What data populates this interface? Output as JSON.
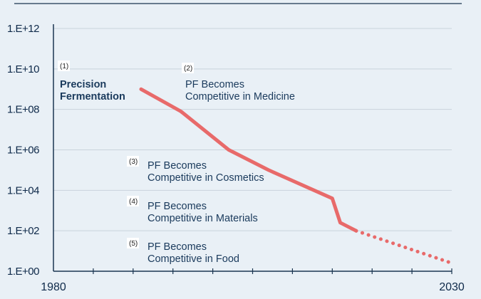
{
  "chart_data": {
    "type": "line",
    "x_axis": {
      "min": 1980,
      "max": 2030,
      "tick_labels": [
        "1980",
        "2030"
      ],
      "minor_tick_step": 5
    },
    "y_axis": {
      "scale": "log10",
      "min_exp": 0,
      "max_exp": 12,
      "tick_exps": [
        0,
        2,
        4,
        6,
        8,
        10,
        12
      ],
      "tick_labels": [
        "1.E+00",
        "1.E+02",
        "1.E+04",
        "1.E+06",
        "1.E+08",
        "1.E+10",
        "1.E+12"
      ]
    },
    "grid": true,
    "series": [
      {
        "style": "solid",
        "color": "#e86a6a",
        "points": [
          {
            "x": 1991,
            "y_exp": 9.0
          },
          {
            "x": 1996,
            "y_exp": 7.9
          },
          {
            "x": 2002,
            "y_exp": 6.0
          },
          {
            "x": 2007,
            "y_exp": 5.0
          },
          {
            "x": 2015,
            "y_exp": 3.6
          },
          {
            "x": 2016,
            "y_exp": 2.4
          },
          {
            "x": 2018,
            "y_exp": 2.0
          }
        ]
      },
      {
        "style": "dotted",
        "color": "#e86a6a",
        "points": [
          {
            "x": 2018,
            "y_exp": 2.0
          },
          {
            "x": 2030,
            "y_exp": 0.4
          }
        ]
      }
    ],
    "annotations": [
      {
        "number": "(1)",
        "lines": [
          "Precision",
          "Fermentation"
        ],
        "bold": true
      },
      {
        "number": "(2)",
        "lines": [
          "PF Becomes",
          "Competitive in Medicine"
        ],
        "bold": false
      },
      {
        "number": "(3)",
        "lines": [
          "PF Becomes",
          "Competitive in Cosmetics"
        ],
        "bold": false
      },
      {
        "number": "(4)",
        "lines": [
          "PF Becomes",
          "Competitive in Materials"
        ],
        "bold": false
      },
      {
        "number": "(5)",
        "lines": [
          "PF Becomes",
          "Competitive in Food"
        ],
        "bold": false
      }
    ]
  }
}
